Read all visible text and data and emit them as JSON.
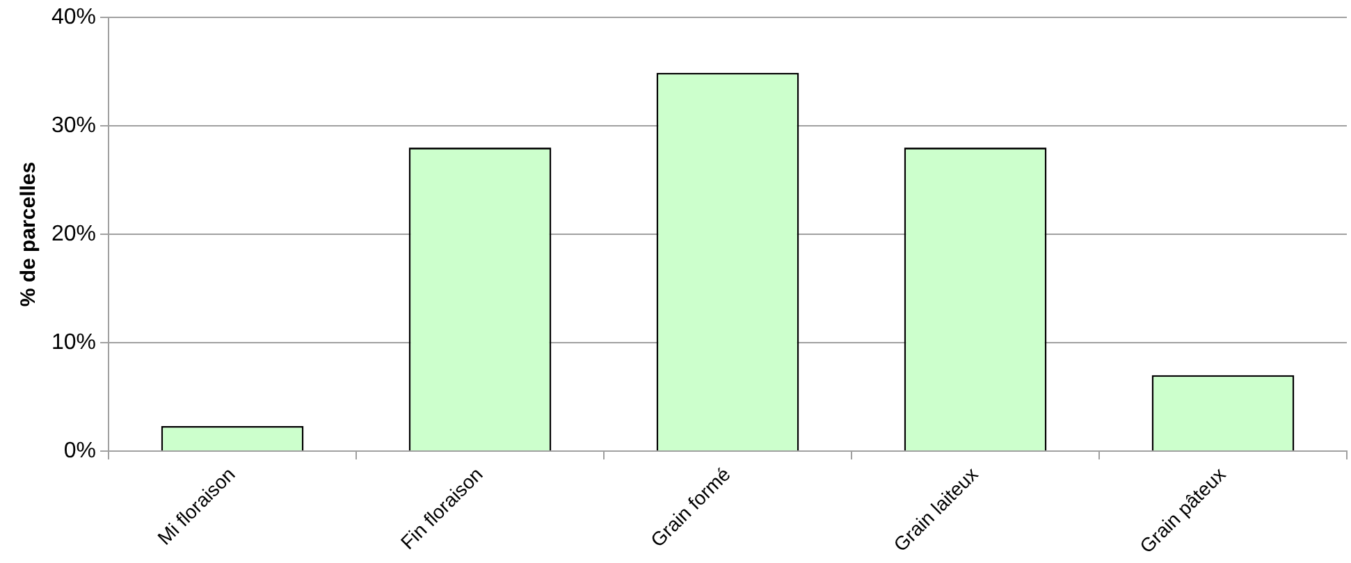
{
  "chart_data": {
    "type": "bar",
    "ylabel": "% de parcelles",
    "categories": [
      "Mi floraison",
      "Fin floraison",
      "Grain formé",
      "Grain laiteux",
      "Grain pâteux"
    ],
    "values": [
      2.3,
      28,
      34.9,
      28,
      7.0
    ],
    "color": "#ccffcc",
    "ylim": [
      0,
      40
    ],
    "yticks": [
      {
        "value": 0,
        "label": "0%"
      },
      {
        "value": 10,
        "label": "10%"
      },
      {
        "value": 20,
        "label": "20%"
      },
      {
        "value": 30,
        "label": "30%"
      },
      {
        "value": 40,
        "label": "40%"
      }
    ],
    "grid": "y",
    "legend": false
  }
}
